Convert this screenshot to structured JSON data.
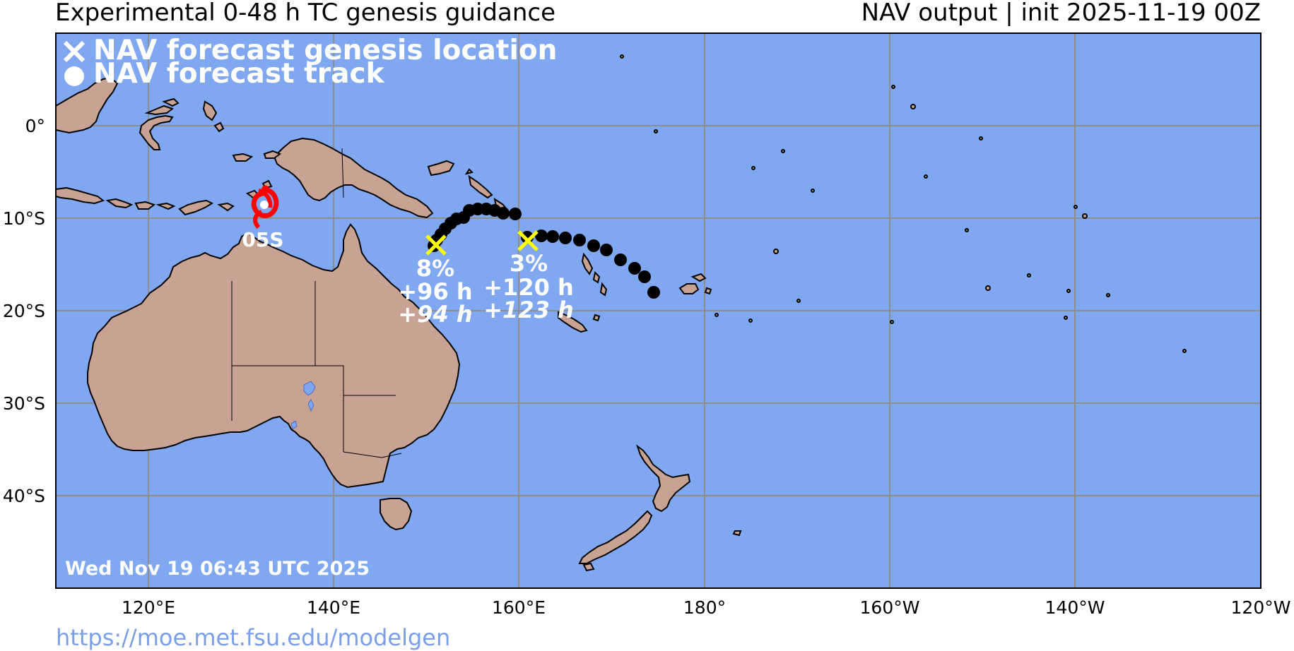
{
  "header": {
    "left_title": "Experimental 0-48 h TC genesis guidance",
    "right_title": "NAV output | init 2025-11-19 00Z"
  },
  "legend": {
    "genesis_label": "NAV forecast genesis location",
    "track_label": "NAV forecast track"
  },
  "map": {
    "ocean_color": "#80a8f0",
    "land_color": "#c8a293",
    "lon_ticks": [
      "120°E",
      "140°E",
      "160°E",
      "180°",
      "160°W",
      "140°W",
      "120°W"
    ],
    "lat_ticks": [
      "0°",
      "10°S",
      "20°S",
      "30°S",
      "40°S"
    ]
  },
  "storm": {
    "id": "05S",
    "icon": "tropical-cyclone-icon",
    "color": "#ff0000"
  },
  "genesis_points": [
    {
      "probability": "8%",
      "lead_time": "+96 h",
      "lead_time_alt": "+94 h",
      "marker_color": "#ffff00"
    },
    {
      "probability": "3%",
      "lead_time": "+120 h",
      "lead_time_alt": "+123 h",
      "marker_color": "#ffff00"
    }
  ],
  "footer": {
    "timestamp": "Wed Nov 19 06:43 UTC 2025",
    "url": "https://moe.met.fsu.edu/modelgen"
  }
}
